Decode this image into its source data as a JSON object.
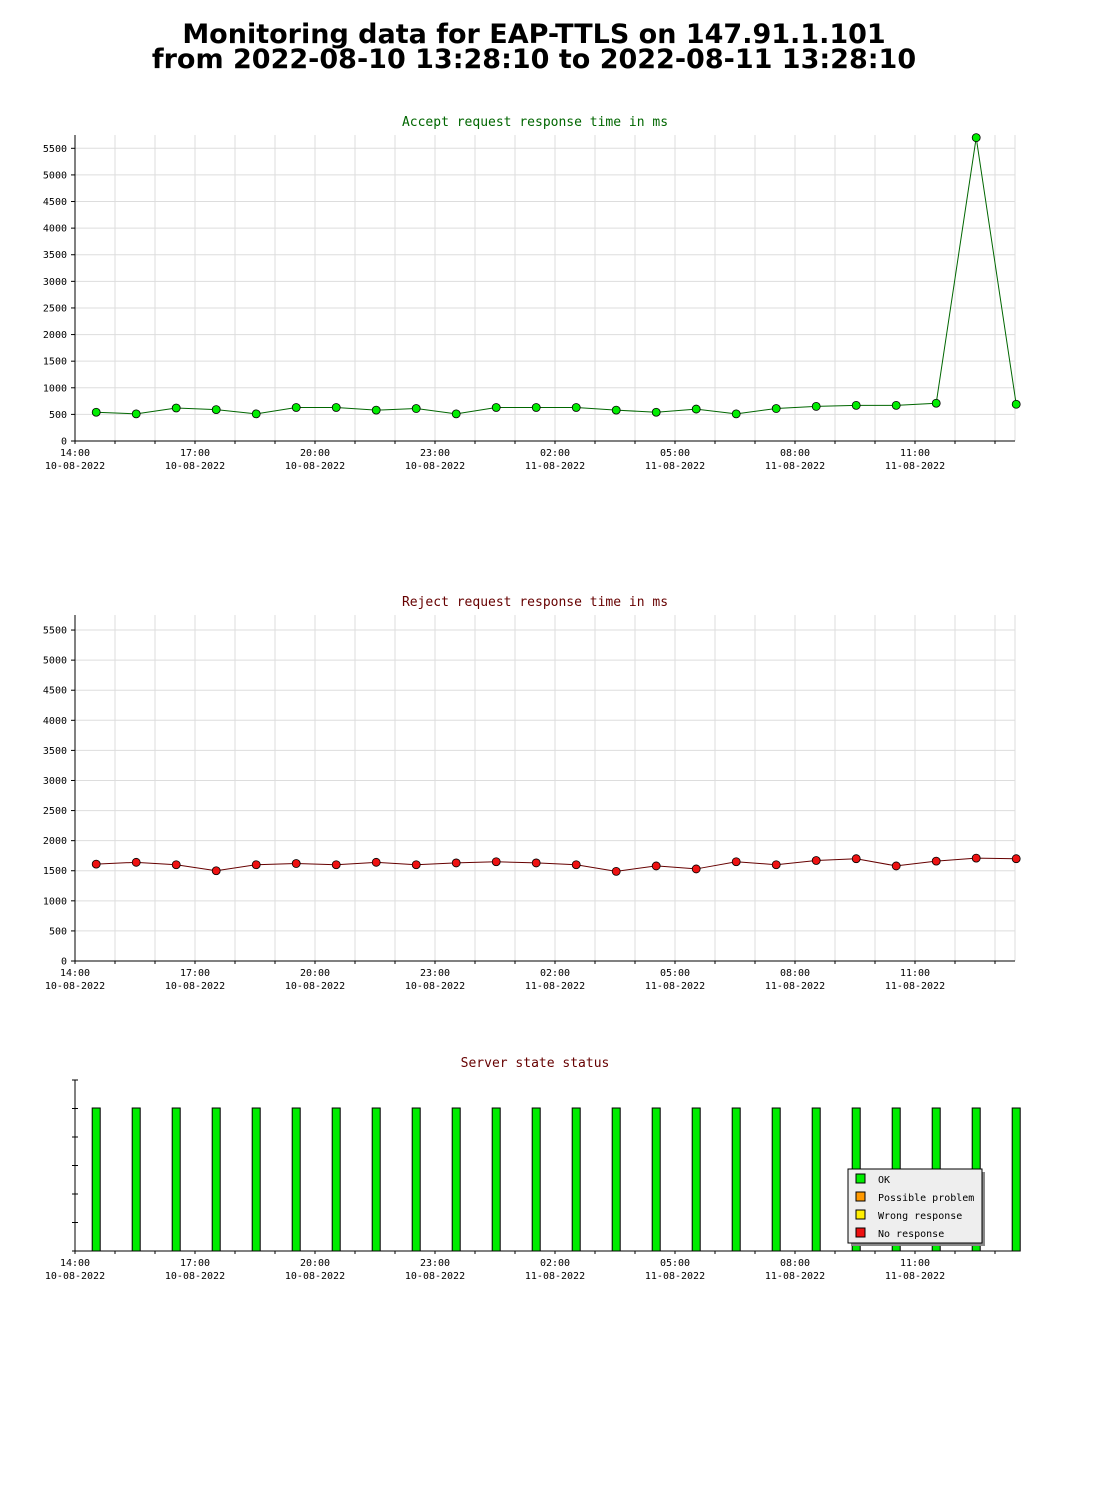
{
  "page": {
    "title_line1": "Monitoring data for EAP-TTLS on 147.91.1.101",
    "title_line2": "from 2022-08-10 13:28:10 to 2022-08-11 13:28:10"
  },
  "colors": {
    "accept_line": "#006600",
    "accept_marker": "#00ee00",
    "reject_line": "#660000",
    "reject_marker": "#ee1111",
    "title_accept": "#006600",
    "title_reject": "#660000",
    "status_ok": "#00ee00",
    "status_possible": "#ff9900",
    "status_wrong": "#ffee00",
    "status_none": "#ee1111"
  },
  "chart_data": [
    {
      "id": "accept",
      "type": "line",
      "title": "Accept request response time in ms",
      "x_ticks": [
        {
          "time": "14:00",
          "date": "10-08-2022"
        },
        {
          "time": "17:00",
          "date": "10-08-2022"
        },
        {
          "time": "20:00",
          "date": "10-08-2022"
        },
        {
          "time": "23:00",
          "date": "10-08-2022"
        },
        {
          "time": "02:00",
          "date": "11-08-2022"
        },
        {
          "time": "05:00",
          "date": "11-08-2022"
        },
        {
          "time": "08:00",
          "date": "11-08-2022"
        },
        {
          "time": "11:00",
          "date": "11-08-2022"
        }
      ],
      "x_range_hours": [
        0,
        24
      ],
      "y_ticks": [
        0,
        500,
        1000,
        1500,
        2000,
        2500,
        3000,
        3500,
        4000,
        4500,
        5000,
        5500
      ],
      "ylim": [
        0,
        5750
      ],
      "grid": true,
      "x_hours": [
        0.28,
        1.28,
        2.28,
        3.28,
        4.28,
        5.28,
        6.28,
        7.28,
        8.28,
        9.28,
        10.28,
        11.28,
        12.28,
        13.28,
        14.28,
        15.28,
        16.28,
        17.28,
        18.28,
        19.28,
        20.28,
        21.28,
        22.28,
        23.28
      ],
      "values": [
        540,
        510,
        620,
        590,
        510,
        630,
        630,
        580,
        610,
        510,
        630,
        630,
        630,
        580,
        540,
        600,
        510,
        610,
        650,
        670,
        670,
        710,
        5700,
        690
      ]
    },
    {
      "id": "reject",
      "type": "line",
      "title": "Reject request response time in ms",
      "x_ticks": [
        {
          "time": "14:00",
          "date": "10-08-2022"
        },
        {
          "time": "17:00",
          "date": "10-08-2022"
        },
        {
          "time": "20:00",
          "date": "10-08-2022"
        },
        {
          "time": "23:00",
          "date": "10-08-2022"
        },
        {
          "time": "02:00",
          "date": "11-08-2022"
        },
        {
          "time": "05:00",
          "date": "11-08-2022"
        },
        {
          "time": "08:00",
          "date": "11-08-2022"
        },
        {
          "time": "11:00",
          "date": "11-08-2022"
        }
      ],
      "x_range_hours": [
        0,
        24
      ],
      "y_ticks": [
        0,
        500,
        1000,
        1500,
        2000,
        2500,
        3000,
        3500,
        4000,
        4500,
        5000,
        5500
      ],
      "ylim": [
        0,
        5750
      ],
      "grid": true,
      "x_hours": [
        0.28,
        1.28,
        2.28,
        3.28,
        4.28,
        5.28,
        6.28,
        7.28,
        8.28,
        9.28,
        10.28,
        11.28,
        12.28,
        13.28,
        14.28,
        15.28,
        16.28,
        17.28,
        18.28,
        19.28,
        20.28,
        21.28,
        22.28,
        23.28
      ],
      "values": [
        1610,
        1640,
        1600,
        1500,
        1600,
        1620,
        1600,
        1640,
        1600,
        1630,
        1650,
        1630,
        1600,
        1490,
        1580,
        1530,
        1650,
        1600,
        1670,
        1700,
        1580,
        1660,
        1710,
        1700
      ]
    },
    {
      "id": "status",
      "type": "bar",
      "title": "Server state status",
      "x_ticks": [
        {
          "time": "14:00",
          "date": "10-08-2022"
        },
        {
          "time": "17:00",
          "date": "10-08-2022"
        },
        {
          "time": "20:00",
          "date": "10-08-2022"
        },
        {
          "time": "23:00",
          "date": "10-08-2022"
        },
        {
          "time": "02:00",
          "date": "11-08-2022"
        },
        {
          "time": "05:00",
          "date": "11-08-2022"
        },
        {
          "time": "08:00",
          "date": "11-08-2022"
        },
        {
          "time": "11:00",
          "date": "11-08-2022"
        }
      ],
      "x_range_hours": [
        0,
        24
      ],
      "grid": false,
      "x_hours": [
        0.28,
        1.28,
        2.28,
        3.28,
        4.28,
        5.28,
        6.28,
        7.28,
        8.28,
        9.28,
        10.28,
        11.28,
        12.28,
        13.28,
        14.28,
        15.28,
        16.28,
        17.28,
        18.28,
        19.28,
        20.28,
        21.28,
        22.28,
        23.28
      ],
      "states": [
        "OK",
        "OK",
        "OK",
        "OK",
        "OK",
        "OK",
        "OK",
        "OK",
        "OK",
        "OK",
        "OK",
        "OK",
        "OK",
        "OK",
        "OK",
        "OK",
        "OK",
        "OK",
        "OK",
        "OK",
        "OK",
        "OK",
        "OK",
        "OK"
      ],
      "legend_position": "bottom-right",
      "legend": [
        {
          "key": "OK",
          "label": "OK",
          "color": "#00ee00"
        },
        {
          "key": "possible",
          "label": "Possible problem",
          "color": "#ff9900"
        },
        {
          "key": "wrong",
          "label": "Wrong response",
          "color": "#ffee00"
        },
        {
          "key": "none",
          "label": "No response",
          "color": "#ee1111"
        }
      ]
    }
  ]
}
